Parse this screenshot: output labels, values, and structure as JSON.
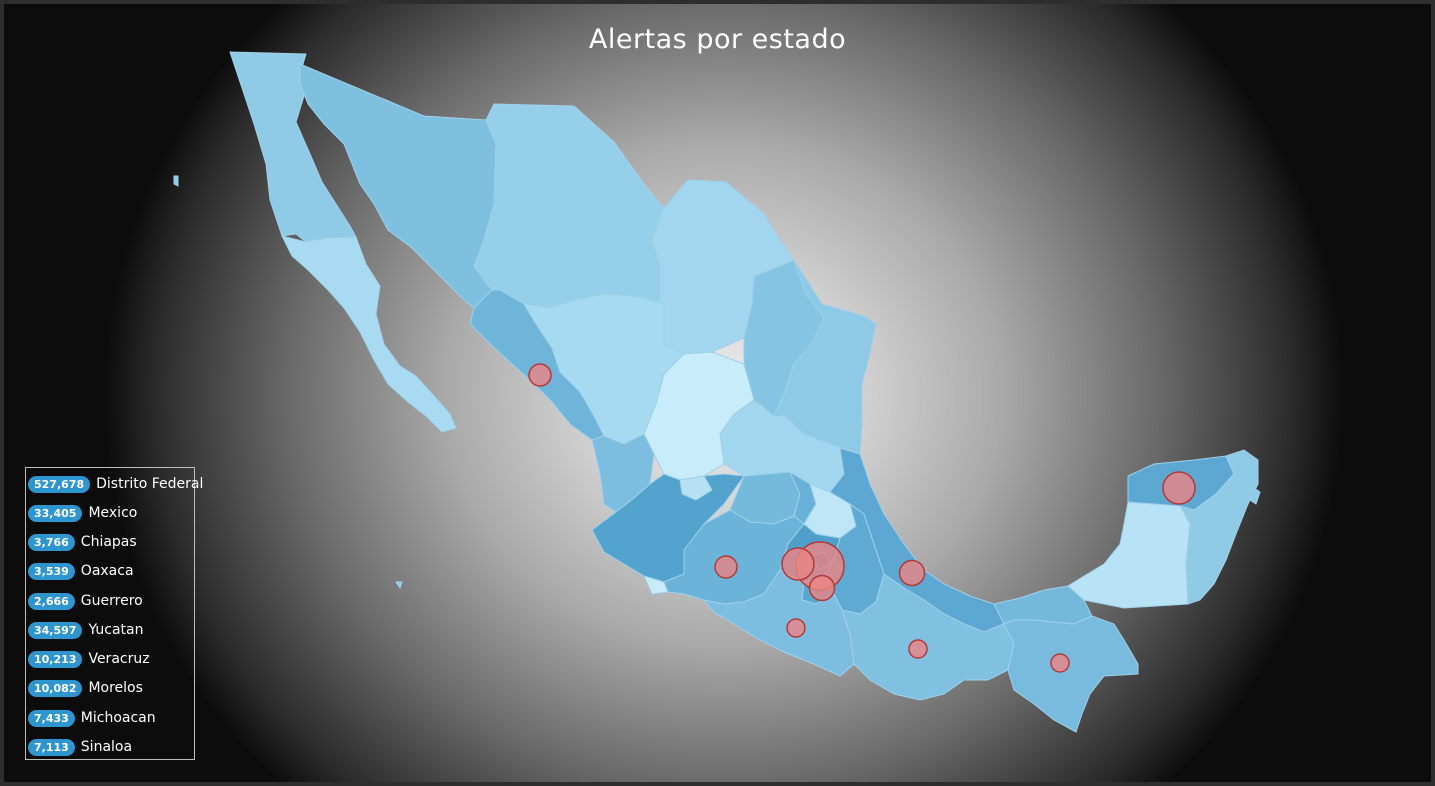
{
  "title": "Alertas por estado",
  "legend": [
    {
      "value": "527,678",
      "name": "Distrito Federal"
    },
    {
      "value": "33,405",
      "name": "Mexico"
    },
    {
      "value": "3,766",
      "name": "Chiapas"
    },
    {
      "value": "3,539",
      "name": "Oaxaca"
    },
    {
      "value": "2,666",
      "name": "Guerrero"
    },
    {
      "value": "34,597",
      "name": "Yucatan"
    },
    {
      "value": "10,213",
      "name": "Veracruz"
    },
    {
      "value": "10,082",
      "name": "Morelos"
    },
    {
      "value": "7,433",
      "name": "Michoacan"
    },
    {
      "value": "7,113",
      "name": "Sinaloa"
    }
  ],
  "colors": {
    "badge": "#2f95cf",
    "marker_fill": "#e98585",
    "marker_stroke": "#b23a3a",
    "map_light": "#c9e9f8",
    "map_mid": "#8cc7e4",
    "map_dark": "#56a7cf"
  }
}
